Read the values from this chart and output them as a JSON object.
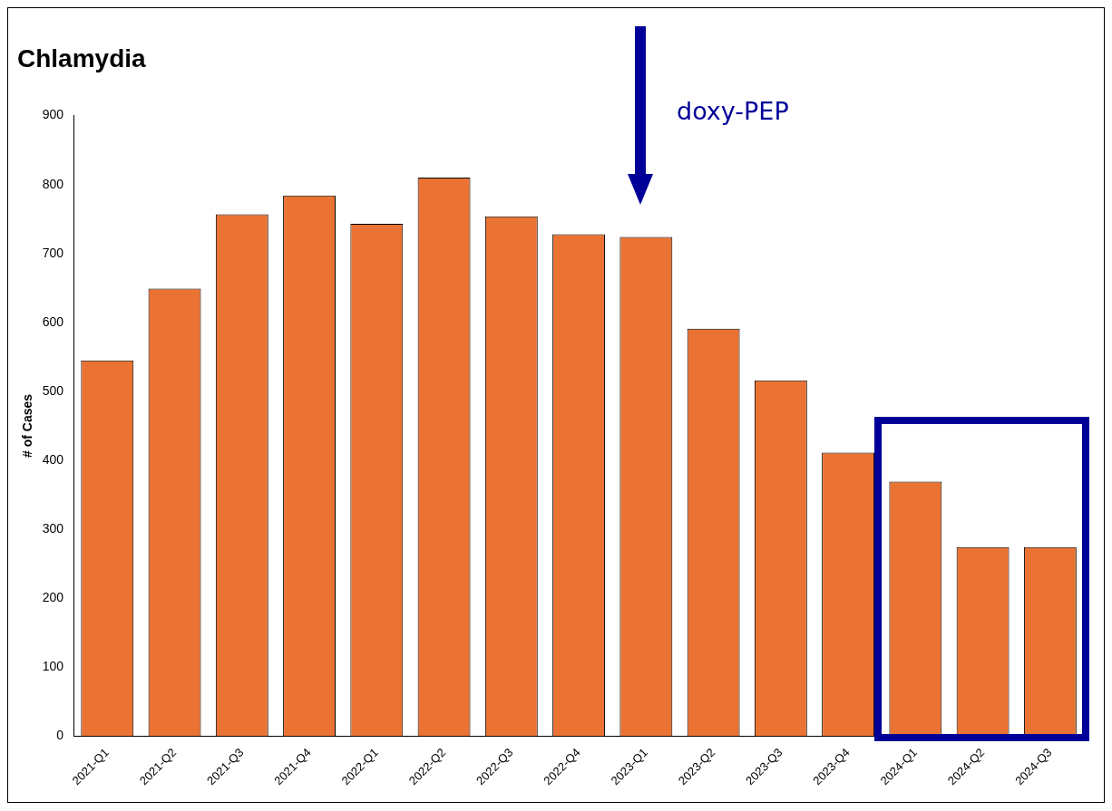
{
  "chart_data": {
    "type": "bar",
    "title": "Chlamydia",
    "ylabel": "# of Cases",
    "categories": [
      "2021-Q1",
      "2021-Q2",
      "2021-Q3",
      "2021-Q4",
      "2022-Q1",
      "2022-Q2",
      "2022-Q3",
      "2022-Q4",
      "2023-Q1",
      "2023-Q2",
      "2023-Q3",
      "2023-Q4",
      "2024-Q1",
      "2024-Q2",
      "2024-Q3"
    ],
    "values": [
      545,
      649,
      757,
      784,
      743,
      810,
      754,
      728,
      724,
      591,
      516,
      411,
      369,
      274,
      274
    ],
    "color": "#ea7334",
    "ylim": [
      0,
      900
    ],
    "yticks": [
      0,
      100,
      200,
      300,
      400,
      500,
      600,
      700,
      800,
      900
    ],
    "grid": false,
    "legend": false,
    "annotations": [
      "doxy-PEP"
    ]
  }
}
